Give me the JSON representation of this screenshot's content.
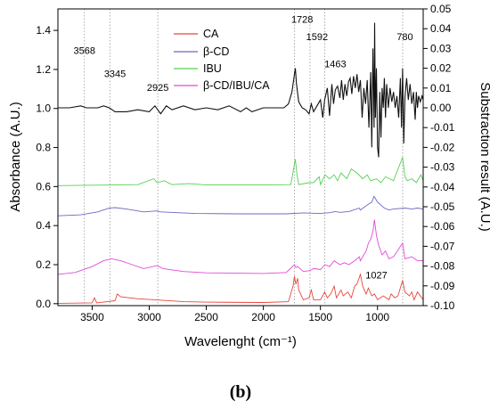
{
  "chart_data": {
    "type": "line",
    "panel_label": "(b)",
    "xlabel": "Wavelenght (cm⁻¹)",
    "ylabel_left": "Absorbance (A.U.)",
    "ylabel_right": "Substraction result (A.U.)",
    "xlim": [
      3800,
      600
    ],
    "ylim_left": [
      -0.01,
      1.51
    ],
    "ylim_right": [
      -0.1,
      0.05
    ],
    "x_ticks": [
      3500,
      3000,
      2500,
      2000,
      1500,
      1000
    ],
    "y_left_ticks": [
      "0.0",
      "0.2",
      "0.4",
      "0.6",
      "0.8",
      "1.0",
      "1.2",
      "1.4"
    ],
    "y_right_ticks": [
      "0.05",
      "0.04",
      "0.03",
      "0.02",
      "0.01",
      "0.00",
      "-0.01",
      "-0.02",
      "-0.03",
      "-0.04",
      "-0.05",
      "-0.06",
      "-0.07",
      "-0.08",
      "-0.09",
      "-0.10"
    ],
    "vlines": [
      3568,
      3345,
      2925,
      1728,
      1592,
      1463,
      780
    ],
    "annotations": [
      {
        "text": "3568",
        "x": 3568,
        "y": 1.28
      },
      {
        "text": "3345",
        "x": 3300,
        "y": 1.16
      },
      {
        "text": "2925",
        "x": 2925,
        "y": 1.09
      },
      {
        "text": "1728",
        "x": 1660,
        "y": 1.44
      },
      {
        "text": "1592",
        "x": 1530,
        "y": 1.35
      },
      {
        "text": "1463",
        "x": 1370,
        "y": 1.21
      },
      {
        "text": "1027",
        "x": 1010,
        "y": 0.13
      },
      {
        "text": "780",
        "x": 760,
        "y": 1.35
      }
    ],
    "legend_position": "top-center",
    "grid": false,
    "series": [
      {
        "name": "CA",
        "color": "#e8463c",
        "baseline": 0.0,
        "points": [
          [
            3800,
            0.002
          ],
          [
            3500,
            0.004
          ],
          [
            3480,
            0.03
          ],
          [
            3460,
            0.004
          ],
          [
            3300,
            0.015
          ],
          [
            3280,
            0.05
          ],
          [
            3250,
            0.035
          ],
          [
            3100,
            0.025
          ],
          [
            2950,
            0.02
          ],
          [
            2700,
            0.01
          ],
          [
            2500,
            0.008
          ],
          [
            2000,
            0.006
          ],
          [
            1780,
            0.01
          ],
          [
            1740,
            0.09
          ],
          [
            1728,
            0.14
          ],
          [
            1715,
            0.1
          ],
          [
            1700,
            0.13
          ],
          [
            1690,
            0.07
          ],
          [
            1650,
            0.02
          ],
          [
            1600,
            0.03
          ],
          [
            1580,
            0.07
          ],
          [
            1560,
            0.02
          ],
          [
            1500,
            0.02
          ],
          [
            1463,
            0.06
          ],
          [
            1440,
            0.03
          ],
          [
            1410,
            0.05
          ],
          [
            1380,
            0.09
          ],
          [
            1360,
            0.03
          ],
          [
            1320,
            0.07
          ],
          [
            1300,
            0.04
          ],
          [
            1260,
            0.06
          ],
          [
            1230,
            0.03
          ],
          [
            1200,
            0.09
          ],
          [
            1180,
            0.1
          ],
          [
            1150,
            0.15
          ],
          [
            1130,
            0.09
          ],
          [
            1100,
            0.05
          ],
          [
            1080,
            0.08
          ],
          [
            1050,
            0.04
          ],
          [
            1027,
            0.05
          ],
          [
            1000,
            0.02
          ],
          [
            950,
            0.04
          ],
          [
            900,
            0.02
          ],
          [
            880,
            0.05
          ],
          [
            850,
            0.03
          ],
          [
            820,
            0.04
          ],
          [
            780,
            0.12
          ],
          [
            760,
            0.06
          ],
          [
            720,
            0.04
          ],
          [
            700,
            0.06
          ],
          [
            680,
            0.02
          ],
          [
            650,
            0.06
          ],
          [
            600,
            0.02
          ]
        ]
      },
      {
        "name": "β-CD",
        "color": "#6a68c4",
        "baseline": 0.45,
        "points": [
          [
            3800,
            0.45
          ],
          [
            3600,
            0.455
          ],
          [
            3450,
            0.47
          ],
          [
            3350,
            0.49
          ],
          [
            3300,
            0.492
          ],
          [
            3200,
            0.485
          ],
          [
            3050,
            0.47
          ],
          [
            2930,
            0.475
          ],
          [
            2900,
            0.47
          ],
          [
            2600,
            0.462
          ],
          [
            2200,
            0.46
          ],
          [
            1800,
            0.46
          ],
          [
            1650,
            0.465
          ],
          [
            1500,
            0.462
          ],
          [
            1420,
            0.466
          ],
          [
            1370,
            0.472
          ],
          [
            1330,
            0.468
          ],
          [
            1250,
            0.472
          ],
          [
            1160,
            0.49
          ],
          [
            1150,
            0.48
          ],
          [
            1080,
            0.51
          ],
          [
            1050,
            0.52
          ],
          [
            1030,
            0.55
          ],
          [
            1020,
            0.54
          ],
          [
            1000,
            0.52
          ],
          [
            960,
            0.5
          ],
          [
            940,
            0.49
          ],
          [
            900,
            0.48
          ],
          [
            860,
            0.485
          ],
          [
            760,
            0.49
          ],
          [
            700,
            0.485
          ],
          [
            650,
            0.49
          ],
          [
            600,
            0.485
          ]
        ]
      },
      {
        "name": "IBU",
        "color": "#55d055",
        "baseline": 0.6,
        "points": [
          [
            3800,
            0.605
          ],
          [
            3100,
            0.61
          ],
          [
            2960,
            0.64
          ],
          [
            2930,
            0.62
          ],
          [
            2870,
            0.63
          ],
          [
            2800,
            0.61
          ],
          [
            2650,
            0.615
          ],
          [
            2500,
            0.608
          ],
          [
            2000,
            0.608
          ],
          [
            1760,
            0.61
          ],
          [
            1720,
            0.74
          ],
          [
            1705,
            0.66
          ],
          [
            1690,
            0.61
          ],
          [
            1600,
            0.62
          ],
          [
            1560,
            0.62
          ],
          [
            1510,
            0.65
          ],
          [
            1500,
            0.61
          ],
          [
            1460,
            0.66
          ],
          [
            1420,
            0.64
          ],
          [
            1380,
            0.66
          ],
          [
            1350,
            0.63
          ],
          [
            1320,
            0.67
          ],
          [
            1270,
            0.64
          ],
          [
            1230,
            0.69
          ],
          [
            1180,
            0.67
          ],
          [
            1130,
            0.64
          ],
          [
            1090,
            0.66
          ],
          [
            1060,
            0.63
          ],
          [
            1010,
            0.64
          ],
          [
            970,
            0.62
          ],
          [
            930,
            0.65
          ],
          [
            860,
            0.63
          ],
          [
            780,
            0.75
          ],
          [
            760,
            0.65
          ],
          [
            740,
            0.63
          ],
          [
            700,
            0.64
          ],
          [
            660,
            0.62
          ],
          [
            620,
            0.66
          ],
          [
            600,
            0.63
          ]
        ]
      },
      {
        "name": "β-CD/IBU/CA",
        "color": "#e04ad8",
        "baseline": 0.15,
        "points": [
          [
            3800,
            0.15
          ],
          [
            3650,
            0.16
          ],
          [
            3500,
            0.19
          ],
          [
            3400,
            0.22
          ],
          [
            3330,
            0.23
          ],
          [
            3250,
            0.22
          ],
          [
            3150,
            0.2
          ],
          [
            3050,
            0.18
          ],
          [
            2930,
            0.195
          ],
          [
            2880,
            0.18
          ],
          [
            2700,
            0.165
          ],
          [
            2500,
            0.158
          ],
          [
            2000,
            0.155
          ],
          [
            1800,
            0.16
          ],
          [
            1728,
            0.2
          ],
          [
            1715,
            0.185
          ],
          [
            1700,
            0.19
          ],
          [
            1650,
            0.165
          ],
          [
            1590,
            0.17
          ],
          [
            1560,
            0.18
          ],
          [
            1500,
            0.175
          ],
          [
            1460,
            0.2
          ],
          [
            1420,
            0.19
          ],
          [
            1380,
            0.22
          ],
          [
            1330,
            0.2
          ],
          [
            1290,
            0.21
          ],
          [
            1250,
            0.2
          ],
          [
            1200,
            0.22
          ],
          [
            1160,
            0.24
          ],
          [
            1150,
            0.22
          ],
          [
            1100,
            0.27
          ],
          [
            1080,
            0.31
          ],
          [
            1060,
            0.33
          ],
          [
            1040,
            0.37
          ],
          [
            1027,
            0.43
          ],
          [
            1010,
            0.35
          ],
          [
            990,
            0.3
          ],
          [
            960,
            0.25
          ],
          [
            930,
            0.27
          ],
          [
            900,
            0.23
          ],
          [
            860,
            0.24
          ],
          [
            780,
            0.31
          ],
          [
            760,
            0.23
          ],
          [
            700,
            0.24
          ],
          [
            650,
            0.22
          ],
          [
            600,
            0.22
          ]
        ]
      },
      {
        "name": "",
        "color": "#111111",
        "axis": "right",
        "points": [
          [
            3800,
            0.0
          ],
          [
            3700,
            0.0
          ],
          [
            3600,
            0.001
          ],
          [
            3550,
            0.0
          ],
          [
            3450,
            0.0
          ],
          [
            3400,
            0.001
          ],
          [
            3350,
            0.0
          ],
          [
            3300,
            -0.002
          ],
          [
            3200,
            -0.002
          ],
          [
            3100,
            -0.001
          ],
          [
            3000,
            -0.002
          ],
          [
            2950,
            0.001
          ],
          [
            2900,
            -0.003
          ],
          [
            2850,
            0.001
          ],
          [
            2800,
            -0.001
          ],
          [
            2700,
            0.001
          ],
          [
            2600,
            -0.001
          ],
          [
            2500,
            0.0
          ],
          [
            2400,
            -0.001
          ],
          [
            2300,
            0.001
          ],
          [
            2200,
            -0.002
          ],
          [
            2150,
            0.0
          ],
          [
            2100,
            -0.002
          ],
          [
            2000,
            0.0
          ],
          [
            1900,
            0.0
          ],
          [
            1820,
            0.0
          ],
          [
            1780,
            0.002
          ],
          [
            1750,
            0.008
          ],
          [
            1728,
            0.017
          ],
          [
            1720,
            0.02
          ],
          [
            1710,
            0.012
          ],
          [
            1690,
            0.003
          ],
          [
            1660,
            0.0
          ],
          [
            1630,
            -0.001
          ],
          [
            1600,
            -0.003
          ],
          [
            1580,
            0.002
          ],
          [
            1560,
            -0.002
          ],
          [
            1530,
            0.001
          ],
          [
            1500,
            0.004
          ],
          [
            1480,
            -0.005
          ],
          [
            1463,
            0.004
          ],
          [
            1440,
            0.01
          ],
          [
            1420,
            -0.004
          ],
          [
            1400,
            0.012
          ],
          [
            1385,
            0.002
          ],
          [
            1370,
            0.009
          ],
          [
            1350,
            0.011
          ],
          [
            1330,
            0.005
          ],
          [
            1315,
            0.014
          ],
          [
            1300,
            0.004
          ],
          [
            1285,
            0.012
          ],
          [
            1270,
            0.006
          ],
          [
            1255,
            0.013
          ],
          [
            1240,
            0.015
          ],
          [
            1225,
            0.007
          ],
          [
            1210,
            0.016
          ],
          [
            1195,
            0.01
          ],
          [
            1180,
            0.017
          ],
          [
            1165,
            0.008
          ],
          [
            1150,
            0.014
          ],
          [
            1135,
            -0.005
          ],
          [
            1120,
            0.01
          ],
          [
            1105,
            0.002
          ],
          [
            1090,
            0.014
          ],
          [
            1075,
            -0.01
          ],
          [
            1060,
            0.018
          ],
          [
            1050,
            -0.02
          ],
          [
            1040,
            0.03
          ],
          [
            1030,
            -0.01
          ],
          [
            1025,
            0.043
          ],
          [
            1018,
            -0.005
          ],
          [
            1010,
            0.02
          ],
          [
            1000,
            -0.02
          ],
          [
            990,
            -0.025
          ],
          [
            980,
            0.008
          ],
          [
            970,
            -0.015
          ],
          [
            960,
            0.01
          ],
          [
            950,
            0.0
          ],
          [
            940,
            0.015
          ],
          [
            930,
            -0.005
          ],
          [
            920,
            0.012
          ],
          [
            905,
            0.0
          ],
          [
            890,
            0.01
          ],
          [
            875,
            0.003
          ],
          [
            860,
            0.008
          ],
          [
            845,
            0.0
          ],
          [
            830,
            0.006
          ],
          [
            815,
            -0.005
          ],
          [
            800,
            0.015
          ],
          [
            790,
            -0.01
          ],
          [
            780,
            0.02
          ],
          [
            770,
            -0.018
          ],
          [
            760,
            0.005
          ],
          [
            745,
            0.015
          ],
          [
            730,
            0.004
          ],
          [
            715,
            0.012
          ],
          [
            700,
            0.002
          ],
          [
            685,
            0.008
          ],
          [
            670,
            -0.006
          ],
          [
            660,
            0.008
          ],
          [
            650,
            0.0
          ],
          [
            640,
            0.006
          ],
          [
            625,
            0.003
          ],
          [
            610,
            0.006
          ],
          [
            600,
            0.004
          ]
        ]
      }
    ]
  }
}
